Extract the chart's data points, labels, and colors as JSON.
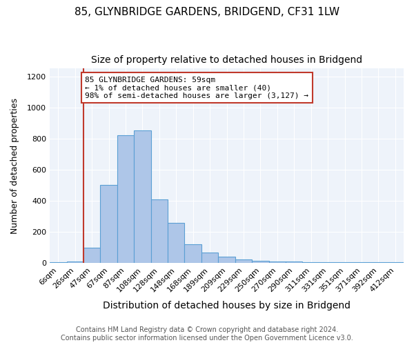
{
  "title": "85, GLYNBRIDGE GARDENS, BRIDGEND, CF31 1LW",
  "subtitle": "Size of property relative to detached houses in Bridgend",
  "xlabel": "Distribution of detached houses by size in Bridgend",
  "ylabel": "Number of detached properties",
  "categories": [
    "6sqm",
    "26sqm",
    "47sqm",
    "67sqm",
    "87sqm",
    "108sqm",
    "128sqm",
    "148sqm",
    "168sqm",
    "189sqm",
    "209sqm",
    "229sqm",
    "250sqm",
    "270sqm",
    "290sqm",
    "311sqm",
    "331sqm",
    "351sqm",
    "371sqm",
    "392sqm",
    "412sqm"
  ],
  "values": [
    5,
    10,
    100,
    500,
    820,
    850,
    410,
    258,
    120,
    65,
    38,
    22,
    13,
    10,
    8,
    6,
    4,
    5,
    3,
    5,
    5
  ],
  "bar_color": "#aec6e8",
  "bar_edge_color": "#5a9fd4",
  "vline_color": "#c0392b",
  "vline_x": 1.5,
  "annotation_text": "85 GLYNBRIDGE GARDENS: 59sqm\n← 1% of detached houses are smaller (40)\n98% of semi-detached houses are larger (3,127) →",
  "annotation_box_color": "white",
  "annotation_box_edge_color": "#c0392b",
  "ylim": [
    0,
    1250
  ],
  "yticks": [
    0,
    200,
    400,
    600,
    800,
    1000,
    1200
  ],
  "background_color": "#eef3fa",
  "footer_line1": "Contains HM Land Registry data © Crown copyright and database right 2024.",
  "footer_line2": "Contains public sector information licensed under the Open Government Licence v3.0.",
  "title_fontsize": 11,
  "subtitle_fontsize": 10,
  "xlabel_fontsize": 10,
  "ylabel_fontsize": 9,
  "tick_fontsize": 8,
  "annotation_fontsize": 8,
  "footer_fontsize": 7
}
